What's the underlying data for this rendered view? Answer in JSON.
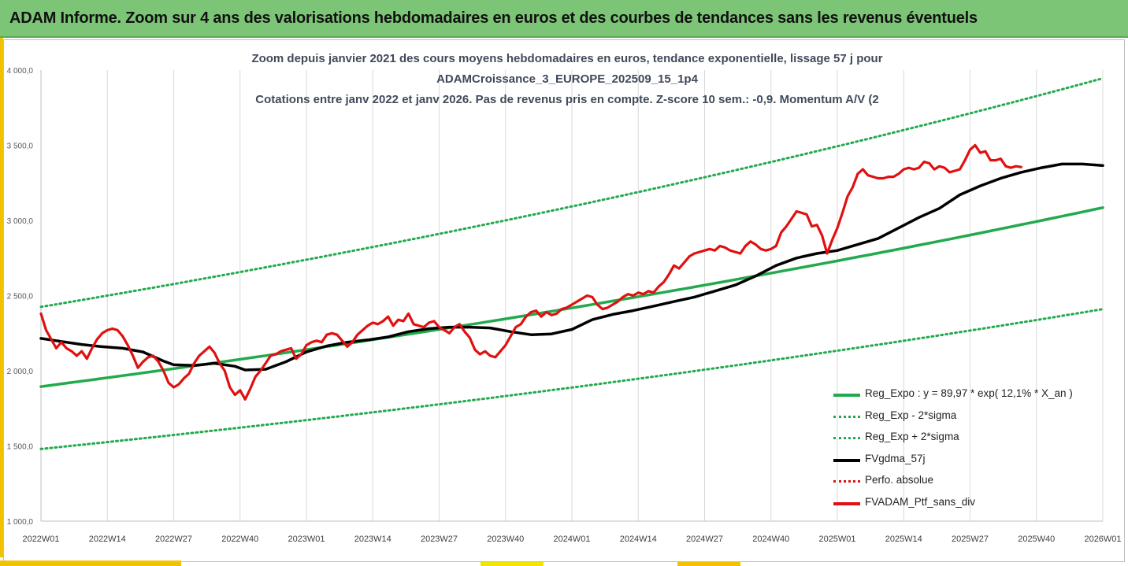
{
  "banner": {
    "title": "ADAM Informe. Zoom sur 4 ans des valorisations hebdomadaires en euros et des courbes de tendances sans les revenus éventuels"
  },
  "chart_data": {
    "type": "line",
    "title_lines": [
      "Zoom depuis janvier 2021 des cours moyens hebdomadaires  en euros, tendance exponentielle, lissage 57 j pour",
      "ADAMCroissance_3_EUROPE_202509_15_1p4",
      "Cotations  entre janv 2022 et janv 2026. Pas de revenus pris en compte. Z-score 10 sem.: -0,9. Momentum  A/V (2"
    ],
    "x_range": [
      0,
      208
    ],
    "ylim": [
      1000,
      4000
    ],
    "y_ticks": [
      1000,
      1500,
      2000,
      2500,
      3000,
      3500,
      4000
    ],
    "y_tick_labels": [
      "1 000,0",
      "1 500,0",
      "2 000,0",
      "2 500,0",
      "3 000,0",
      "3 500,0",
      "4 000,0"
    ],
    "x_ticks": [
      0,
      13,
      26,
      39,
      52,
      65,
      78,
      91,
      104,
      117,
      130,
      143,
      156,
      169,
      182,
      195,
      208
    ],
    "x_tick_labels": [
      "2022W01",
      "2022W14",
      "2022W27",
      "2022W40",
      "2023W01",
      "2023W14",
      "2023W27",
      "2023W40",
      "2024W01",
      "2024W14",
      "2024W27",
      "2024W40",
      "2025W01",
      "2025W14",
      "2025W27",
      "2025W40",
      "2026W01"
    ],
    "grid": "vertical",
    "legend_position": "bottom-right",
    "series": [
      {
        "name": "Reg_Expo : y = 89,97 * exp( 12,1% *  X_an )",
        "color": "#22aa4d",
        "style": "solid",
        "kind": "exp",
        "start": 1895,
        "end": 3085
      },
      {
        "name": "Reg_Exp - 2*sigma",
        "color": "#22aa4d",
        "style": "dotted",
        "kind": "exp",
        "start": 1480,
        "end": 2410
      },
      {
        "name": "Reg_Exp + 2*sigma",
        "color": "#22aa4d",
        "style": "dotted",
        "kind": "exp",
        "start": 2425,
        "end": 3945
      },
      {
        "name": "FVgdma_57j",
        "color": "#000000",
        "style": "solid",
        "kind": "points",
        "points": [
          [
            0,
            2215
          ],
          [
            4,
            2195
          ],
          [
            8,
            2175
          ],
          [
            12,
            2160
          ],
          [
            16,
            2150
          ],
          [
            20,
            2125
          ],
          [
            24,
            2065
          ],
          [
            26,
            2040
          ],
          [
            30,
            2035
          ],
          [
            34,
            2050
          ],
          [
            38,
            2030
          ],
          [
            40,
            2005
          ],
          [
            44,
            2010
          ],
          [
            48,
            2060
          ],
          [
            52,
            2125
          ],
          [
            56,
            2165
          ],
          [
            60,
            2190
          ],
          [
            64,
            2205
          ],
          [
            68,
            2225
          ],
          [
            72,
            2260
          ],
          [
            76,
            2280
          ],
          [
            80,
            2290
          ],
          [
            84,
            2290
          ],
          [
            88,
            2285
          ],
          [
            92,
            2260
          ],
          [
            96,
            2240
          ],
          [
            100,
            2245
          ],
          [
            104,
            2275
          ],
          [
            108,
            2340
          ],
          [
            112,
            2375
          ],
          [
            116,
            2400
          ],
          [
            120,
            2430
          ],
          [
            124,
            2460
          ],
          [
            128,
            2490
          ],
          [
            132,
            2530
          ],
          [
            136,
            2570
          ],
          [
            140,
            2630
          ],
          [
            144,
            2700
          ],
          [
            148,
            2750
          ],
          [
            152,
            2780
          ],
          [
            156,
            2800
          ],
          [
            160,
            2840
          ],
          [
            164,
            2880
          ],
          [
            168,
            2950
          ],
          [
            172,
            3020
          ],
          [
            176,
            3080
          ],
          [
            180,
            3170
          ],
          [
            184,
            3230
          ],
          [
            188,
            3280
          ],
          [
            192,
            3320
          ],
          [
            196,
            3350
          ],
          [
            200,
            3375
          ],
          [
            204,
            3375
          ],
          [
            208,
            3365
          ]
        ]
      },
      {
        "name": "Perfo. absolue",
        "color": "#e01010",
        "style": "dotted",
        "kind": "none"
      },
      {
        "name": "FVADAM_Ptf_sans_div",
        "color": "#e01010",
        "style": "solid",
        "kind": "points",
        "points": [
          [
            0,
            2380
          ],
          [
            1,
            2270
          ],
          [
            2,
            2210
          ],
          [
            3,
            2150
          ],
          [
            4,
            2190
          ],
          [
            5,
            2150
          ],
          [
            6,
            2130
          ],
          [
            7,
            2100
          ],
          [
            8,
            2130
          ],
          [
            9,
            2080
          ],
          [
            10,
            2150
          ],
          [
            11,
            2210
          ],
          [
            12,
            2250
          ],
          [
            13,
            2270
          ],
          [
            14,
            2280
          ],
          [
            15,
            2270
          ],
          [
            16,
            2230
          ],
          [
            17,
            2170
          ],
          [
            18,
            2100
          ],
          [
            19,
            2020
          ],
          [
            20,
            2060
          ],
          [
            21,
            2090
          ],
          [
            22,
            2100
          ],
          [
            23,
            2060
          ],
          [
            24,
            2000
          ],
          [
            25,
            1920
          ],
          [
            26,
            1890
          ],
          [
            27,
            1910
          ],
          [
            28,
            1950
          ],
          [
            29,
            1980
          ],
          [
            30,
            2050
          ],
          [
            31,
            2100
          ],
          [
            32,
            2130
          ],
          [
            33,
            2160
          ],
          [
            34,
            2120
          ],
          [
            35,
            2050
          ],
          [
            36,
            2000
          ],
          [
            37,
            1890
          ],
          [
            38,
            1840
          ],
          [
            39,
            1870
          ],
          [
            40,
            1810
          ],
          [
            41,
            1880
          ],
          [
            42,
            1960
          ],
          [
            43,
            2000
          ],
          [
            44,
            2050
          ],
          [
            45,
            2100
          ],
          [
            46,
            2110
          ],
          [
            47,
            2130
          ],
          [
            48,
            2140
          ],
          [
            49,
            2150
          ],
          [
            50,
            2080
          ],
          [
            51,
            2110
          ],
          [
            52,
            2170
          ],
          [
            53,
            2190
          ],
          [
            54,
            2200
          ],
          [
            55,
            2190
          ],
          [
            56,
            2240
          ],
          [
            57,
            2250
          ],
          [
            58,
            2240
          ],
          [
            59,
            2200
          ],
          [
            60,
            2160
          ],
          [
            61,
            2190
          ],
          [
            62,
            2240
          ],
          [
            63,
            2270
          ],
          [
            64,
            2300
          ],
          [
            65,
            2320
          ],
          [
            66,
            2310
          ],
          [
            67,
            2330
          ],
          [
            68,
            2360
          ],
          [
            69,
            2300
          ],
          [
            70,
            2340
          ],
          [
            71,
            2330
          ],
          [
            72,
            2380
          ],
          [
            73,
            2310
          ],
          [
            74,
            2300
          ],
          [
            75,
            2290
          ],
          [
            76,
            2320
          ],
          [
            77,
            2330
          ],
          [
            78,
            2290
          ],
          [
            79,
            2270
          ],
          [
            80,
            2250
          ],
          [
            81,
            2290
          ],
          [
            82,
            2310
          ],
          [
            83,
            2260
          ],
          [
            84,
            2220
          ],
          [
            85,
            2140
          ],
          [
            86,
            2110
          ],
          [
            87,
            2130
          ],
          [
            88,
            2100
          ],
          [
            89,
            2090
          ],
          [
            90,
            2130
          ],
          [
            91,
            2170
          ],
          [
            92,
            2230
          ],
          [
            93,
            2290
          ],
          [
            94,
            2310
          ],
          [
            95,
            2360
          ],
          [
            96,
            2390
          ],
          [
            97,
            2400
          ],
          [
            98,
            2360
          ],
          [
            99,
            2390
          ],
          [
            100,
            2370
          ],
          [
            101,
            2380
          ],
          [
            102,
            2410
          ],
          [
            103,
            2420
          ],
          [
            104,
            2440
          ],
          [
            105,
            2460
          ],
          [
            106,
            2480
          ],
          [
            107,
            2500
          ],
          [
            108,
            2490
          ],
          [
            109,
            2440
          ],
          [
            110,
            2410
          ],
          [
            111,
            2420
          ],
          [
            112,
            2440
          ],
          [
            113,
            2460
          ],
          [
            114,
            2490
          ],
          [
            115,
            2510
          ],
          [
            116,
            2500
          ],
          [
            117,
            2520
          ],
          [
            118,
            2510
          ],
          [
            119,
            2530
          ],
          [
            120,
            2520
          ],
          [
            121,
            2560
          ],
          [
            122,
            2590
          ],
          [
            123,
            2640
          ],
          [
            124,
            2700
          ],
          [
            125,
            2680
          ],
          [
            126,
            2720
          ],
          [
            127,
            2760
          ],
          [
            128,
            2780
          ],
          [
            129,
            2790
          ],
          [
            130,
            2800
          ],
          [
            131,
            2810
          ],
          [
            132,
            2800
          ],
          [
            133,
            2830
          ],
          [
            134,
            2820
          ],
          [
            135,
            2800
          ],
          [
            136,
            2790
          ],
          [
            137,
            2780
          ],
          [
            138,
            2830
          ],
          [
            139,
            2860
          ],
          [
            140,
            2840
          ],
          [
            141,
            2810
          ],
          [
            142,
            2800
          ],
          [
            143,
            2810
          ],
          [
            144,
            2830
          ],
          [
            145,
            2920
          ],
          [
            146,
            2960
          ],
          [
            147,
            3010
          ],
          [
            148,
            3060
          ],
          [
            149,
            3050
          ],
          [
            150,
            3040
          ],
          [
            151,
            2960
          ],
          [
            152,
            2970
          ],
          [
            153,
            2900
          ],
          [
            154,
            2780
          ],
          [
            155,
            2870
          ],
          [
            156,
            2950
          ],
          [
            157,
            3050
          ],
          [
            158,
            3160
          ],
          [
            159,
            3220
          ],
          [
            160,
            3310
          ],
          [
            161,
            3340
          ],
          [
            162,
            3300
          ],
          [
            163,
            3290
          ],
          [
            164,
            3280
          ],
          [
            165,
            3280
          ],
          [
            166,
            3290
          ],
          [
            167,
            3290
          ],
          [
            168,
            3310
          ],
          [
            169,
            3340
          ],
          [
            170,
            3350
          ],
          [
            171,
            3340
          ],
          [
            172,
            3350
          ],
          [
            173,
            3390
          ],
          [
            174,
            3380
          ],
          [
            175,
            3340
          ],
          [
            176,
            3360
          ],
          [
            177,
            3350
          ],
          [
            178,
            3320
          ],
          [
            179,
            3330
          ],
          [
            180,
            3340
          ],
          [
            181,
            3400
          ],
          [
            182,
            3470
          ],
          [
            183,
            3500
          ],
          [
            184,
            3450
          ],
          [
            185,
            3460
          ],
          [
            186,
            3400
          ],
          [
            187,
            3400
          ],
          [
            188,
            3410
          ],
          [
            189,
            3360
          ],
          [
            190,
            3350
          ],
          [
            191,
            3360
          ],
          [
            192,
            3355
          ]
        ]
      }
    ]
  }
}
